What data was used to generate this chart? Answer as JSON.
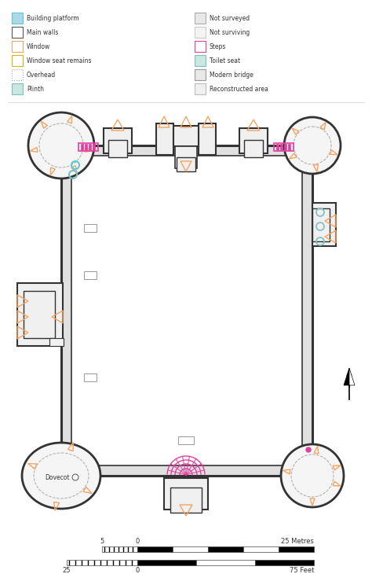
{
  "legend_left": [
    {
      "label": "Building platform",
      "fc": "#add8e6",
      "ec": "#5bc8d8",
      "ls": "solid"
    },
    {
      "label": "Main walls",
      "fc": "#ffffff",
      "ec": "#555555",
      "ls": "solid"
    },
    {
      "label": "Window",
      "fc": "#ffffff",
      "ec": "#f4a460",
      "ls": "solid"
    },
    {
      "label": "Window seat remains",
      "fc": "#ffffff",
      "ec": "#d4b800",
      "ls": "solid"
    },
    {
      "label": "Overhead",
      "fc": "#ffffff",
      "ec": "#aaaaaa",
      "ls": "dotted"
    },
    {
      "label": "Plinth",
      "fc": "#c8e8e0",
      "ec": "#7fbfbf",
      "ls": "solid"
    }
  ],
  "legend_right": [
    {
      "label": "Not surveyed",
      "fc": "#e8e8e8",
      "ec": "#aaaaaa",
      "ls": "solid"
    },
    {
      "label": "Not surviving",
      "fc": "#f4f4f4",
      "ec": "#cccccc",
      "ls": "solid"
    },
    {
      "label": "Steps",
      "fc": "#ffffff",
      "ec": "#e040a0",
      "ls": "solid"
    },
    {
      "label": "Toilet seat",
      "fc": "#c8e8e0",
      "ec": "#7fbfbf",
      "ls": "solid"
    },
    {
      "label": "Modern bridge",
      "fc": "#e8e8e8",
      "ec": "#999999",
      "ls": "solid"
    },
    {
      "label": "Reconstructed area",
      "fc": "#f0f0f0",
      "ec": "#bbbbbb",
      "ls": "solid"
    }
  ],
  "wall_color": "#333333",
  "orange_color": "#f4a460",
  "yellow_color": "#d4b800",
  "steps_color": "#e040a0",
  "toilet_color": "#7fbfbf",
  "blue_color": "#5bc8d8",
  "gray_color": "#aaaaaa"
}
